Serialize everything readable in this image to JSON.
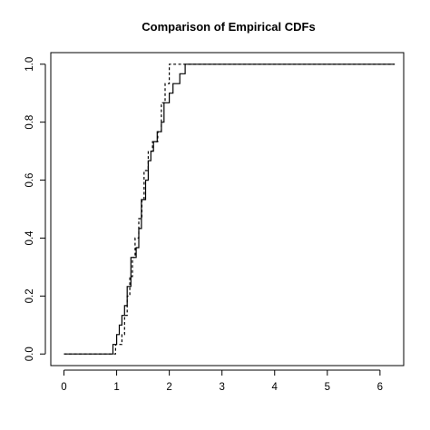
{
  "chart_data": {
    "type": "line",
    "title": "Comparison of Empirical CDFs",
    "xlabel": "",
    "ylabel": "",
    "xlim": [
      -0.25,
      6.45
    ],
    "ylim": [
      -0.04,
      1.04
    ],
    "x_ticks": [
      0,
      1,
      2,
      3,
      4,
      5,
      6
    ],
    "y_ticks": [
      0.0,
      0.2,
      0.4,
      0.6,
      0.8,
      1.0
    ],
    "x_tick_labels": [
      "0",
      "1",
      "2",
      "3",
      "4",
      "5",
      "6"
    ],
    "y_tick_labels": [
      "0.0",
      "0.2",
      "0.4",
      "0.6",
      "0.8",
      "1.0"
    ],
    "grid": false,
    "legend": "none",
    "series": [
      {
        "style": "solid",
        "color": "#000000",
        "x_start": 0,
        "x_end": 6.28,
        "steps": [
          [
            0.93,
            0.033
          ],
          [
            1.0,
            0.067
          ],
          [
            1.05,
            0.1
          ],
          [
            1.1,
            0.133
          ],
          [
            1.15,
            0.167
          ],
          [
            1.2,
            0.233
          ],
          [
            1.27,
            0.333
          ],
          [
            1.37,
            0.367
          ],
          [
            1.42,
            0.433
          ],
          [
            1.47,
            0.533
          ],
          [
            1.55,
            0.6
          ],
          [
            1.6,
            0.667
          ],
          [
            1.65,
            0.7
          ],
          [
            1.7,
            0.733
          ],
          [
            1.77,
            0.767
          ],
          [
            1.85,
            0.8
          ],
          [
            1.9,
            0.867
          ],
          [
            2.0,
            0.9
          ],
          [
            2.07,
            0.933
          ],
          [
            2.2,
            0.967
          ],
          [
            2.3,
            1.0
          ]
        ]
      },
      {
        "style": "dashed",
        "color": "#000000",
        "x_start": 0,
        "x_end": 6.28,
        "steps": [
          [
            0.98,
            0.033
          ],
          [
            1.1,
            0.067
          ],
          [
            1.15,
            0.133
          ],
          [
            1.2,
            0.2
          ],
          [
            1.25,
            0.267
          ],
          [
            1.3,
            0.333
          ],
          [
            1.35,
            0.4
          ],
          [
            1.42,
            0.467
          ],
          [
            1.48,
            0.533
          ],
          [
            1.52,
            0.633
          ],
          [
            1.6,
            0.7
          ],
          [
            1.68,
            0.733
          ],
          [
            1.78,
            0.767
          ],
          [
            1.85,
            0.867
          ],
          [
            1.92,
            0.933
          ],
          [
            2.0,
            1.0
          ]
        ]
      }
    ]
  }
}
